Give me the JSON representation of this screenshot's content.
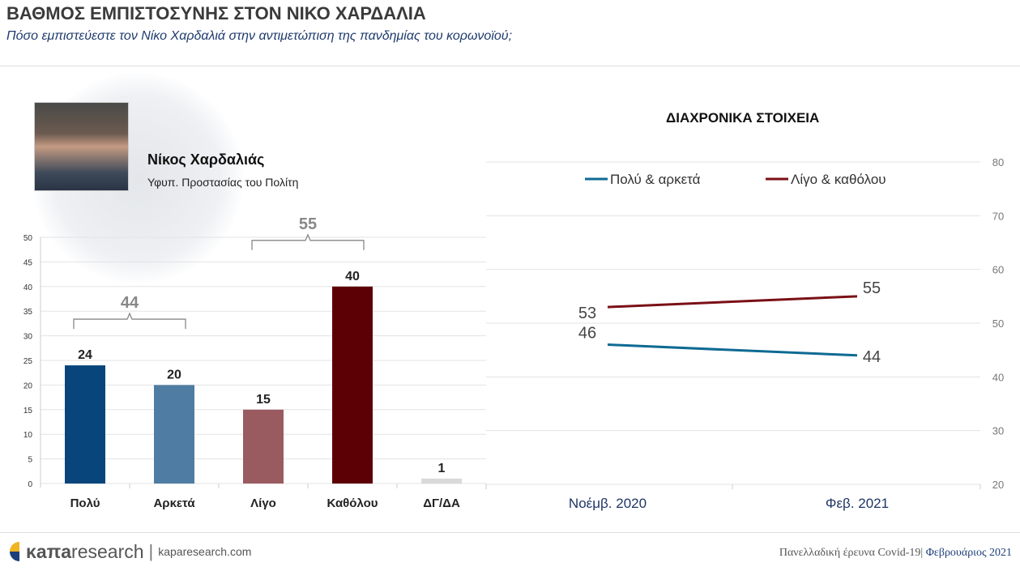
{
  "header": {
    "title": "ΒΑΘΜΟΣ ΕΜΠΙΣΤΟΣΥΝΗΣ ΣΤΟΝ ΝΙΚΟ ΧΑΡΔΑΛΙΑ",
    "subtitle": "Πόσο εμπιστεύεστε τον Νίκο Χαρδαλιά στην αντιμετώπιση της πανδημίας του κορωνοϊού;"
  },
  "person": {
    "name": "Νίκος Χαρδαλιάς",
    "role": "Υφυπ. Προστασίας του Πολίτη"
  },
  "footer": {
    "brand_bold": "κaπa",
    "brand_light": "research",
    "site": "kaparesearch.com",
    "survey": "Πανελλαδική έρευνα Covid-19|",
    "date": "Φεβρουάριος 2021"
  },
  "chart_data": [
    {
      "type": "bar",
      "categories": [
        "Πολύ",
        "Αρκετά",
        "Λίγο",
        "Καθόλου",
        "ΔΓ/ΔΑ"
      ],
      "values": [
        24,
        20,
        15,
        40,
        1
      ],
      "colors": [
        "#08457a",
        "#4f7ca2",
        "#9a5b60",
        "#5c0006",
        "#d9d9d9"
      ],
      "ylim": [
        0,
        50
      ],
      "yticks": [
        0,
        5,
        10,
        15,
        20,
        25,
        30,
        35,
        40,
        45,
        50
      ],
      "grid": true,
      "annotations": [
        {
          "label": "44",
          "spans": [
            "Πολύ",
            "Αρκετά"
          ]
        },
        {
          "label": "55",
          "spans": [
            "Λίγο",
            "Καθόλου"
          ]
        }
      ]
    },
    {
      "type": "line",
      "title": "ΔΙΑΧΡΟΝΙΚΑ ΣΤΟΙΧΕΙΑ",
      "categories": [
        "Νοέμβ. 2020",
        "Φεβ. 2021"
      ],
      "ylim": [
        20,
        80
      ],
      "yticks": [
        20,
        30,
        40,
        50,
        60,
        70,
        80
      ],
      "grid": true,
      "legend": "top",
      "series": [
        {
          "name": "Πολύ & αρκετά",
          "values": [
            46,
            44
          ],
          "color": "#0e6a93"
        },
        {
          "name": "Λίγο & καθόλου",
          "values": [
            53,
            55
          ],
          "color": "#7a1016"
        }
      ]
    }
  ]
}
